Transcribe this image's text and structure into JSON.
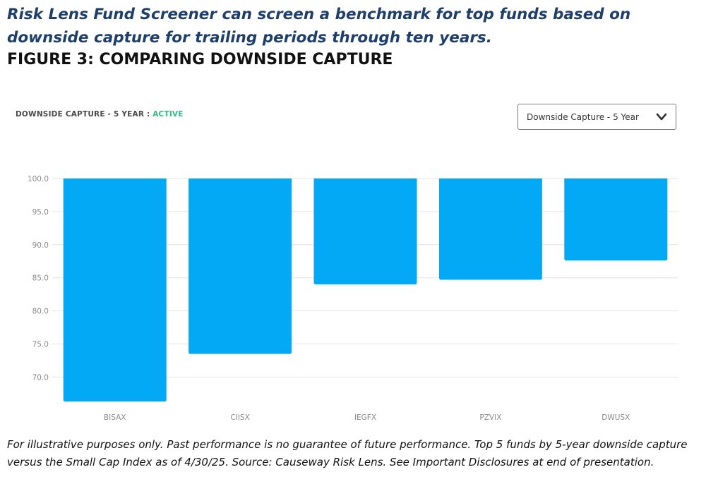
{
  "headline": "Risk Lens Fund Screener can screen a benchmark for top funds based on downside capture for trailing periods through ten years.",
  "figure_title": "FIGURE 3: COMPARING DOWNSIDE CAPTURE",
  "metric": {
    "label": "DOWNSIDE CAPTURE - 5 YEAR :",
    "status": "ACTIVE",
    "status_color": "#2ec27e"
  },
  "dropdown": {
    "selected": "Downside Capture - 5 Year",
    "icon": "chevron-down-icon"
  },
  "chart_data": {
    "type": "bar",
    "title": "",
    "xlabel": "",
    "ylabel": "",
    "categories": [
      "BISAX",
      "CIISX",
      "IEGFX",
      "PZVIX",
      "DWUSX"
    ],
    "values": [
      66.3,
      73.5,
      84.0,
      84.7,
      87.6
    ],
    "baseline": 100.0,
    "ylim": [
      66,
      100
    ],
    "yticks": [
      100.0,
      95.0,
      90.0,
      85.0,
      80.0,
      75.0,
      70.0
    ],
    "ytick_labels": [
      "100.0",
      "95.0",
      "90.0",
      "85.0",
      "80.0",
      "75.0",
      "70.0"
    ],
    "grid": true,
    "bar_color": "#03a9f4"
  },
  "footnote": "For illustrative purposes only. Past performance is no guarantee of future performance. Top 5 funds by 5-year downside capture versus the Small Cap Index as of 4/30/25. Source: Causeway Risk Lens. See Important Disclosures at end of presentation."
}
